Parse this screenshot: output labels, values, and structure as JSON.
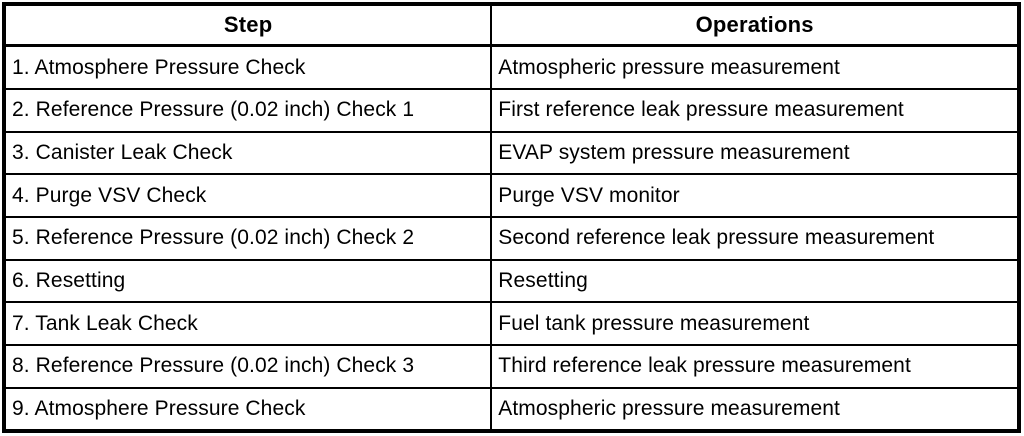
{
  "page": {
    "background_color": "#ffffff",
    "border_color": "#000000"
  },
  "table": {
    "columns": [
      {
        "label": "Step"
      },
      {
        "label": "Operations"
      }
    ],
    "rows": [
      {
        "step": "1. Atmosphere Pressure Check",
        "operation": "Atmospheric pressure measurement"
      },
      {
        "step": "2. Reference Pressure (0.02 inch) Check 1",
        "operation": "First reference leak pressure measurement"
      },
      {
        "step": "3. Canister Leak Check",
        "operation": "EVAP system pressure measurement"
      },
      {
        "step": "4. Purge VSV Check",
        "operation": "Purge VSV monitor"
      },
      {
        "step": "5. Reference Pressure (0.02 inch) Check 2",
        "operation": "Second reference leak pressure measurement"
      },
      {
        "step": "6. Resetting",
        "operation": "Resetting"
      },
      {
        "step": "7. Tank Leak Check",
        "operation": "Fuel tank pressure measurement"
      },
      {
        "step": "8. Reference Pressure (0.02 inch) Check 3",
        "operation": "Third reference leak pressure measurement"
      },
      {
        "step": "9. Atmosphere Pressure Check",
        "operation": "Atmospheric pressure measurement"
      }
    ]
  }
}
